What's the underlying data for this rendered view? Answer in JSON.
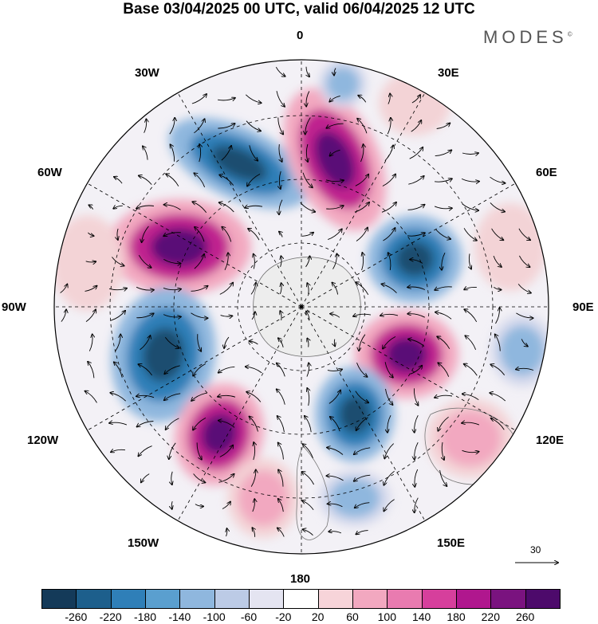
{
  "title": "Base 03/04/2025 00 UTC, valid 06/04/2025 12 UTC",
  "brand": "MODES",
  "brand_mark": "©",
  "longitude_labels": {
    "l0": "0",
    "l30e": "30E",
    "l60e": "60E",
    "l90e": "90E",
    "l120e": "120E",
    "l150e": "150E",
    "l180": "180",
    "l150w": "150W",
    "l120w": "120W",
    "l90w": "90W",
    "l60w": "60W",
    "l30w": "30W"
  },
  "vector_scale": {
    "value": "30"
  },
  "colorbar": {
    "labels": [
      "-260",
      "-220",
      "-180",
      "-140",
      "-100",
      "-60",
      "-20",
      "20",
      "60",
      "100",
      "140",
      "180",
      "220",
      "260"
    ],
    "colors": [
      "#143a59",
      "#1d5f8c",
      "#2f7fb8",
      "#5a9fcf",
      "#8fb7de",
      "#bccbe6",
      "#e4e4f1",
      "#ffffff",
      "#f7d4d9",
      "#f2a8c0",
      "#e97bb0",
      "#d63f9c",
      "#b0178e",
      "#7a137f",
      "#4d0a6b"
    ]
  },
  "map_colors": {
    "land": "#ececec",
    "neg_strong": "#1d4d70",
    "neg_mid": "#2f7fb8",
    "neg_weak": "#8fb7de",
    "pos_strong": "#5a0d77",
    "pos_mid": "#c0208f",
    "pos_weak": "#f2a8c0",
    "faint_neg": "#d5d9ec",
    "faint_pos": "#f3d3d6"
  }
}
